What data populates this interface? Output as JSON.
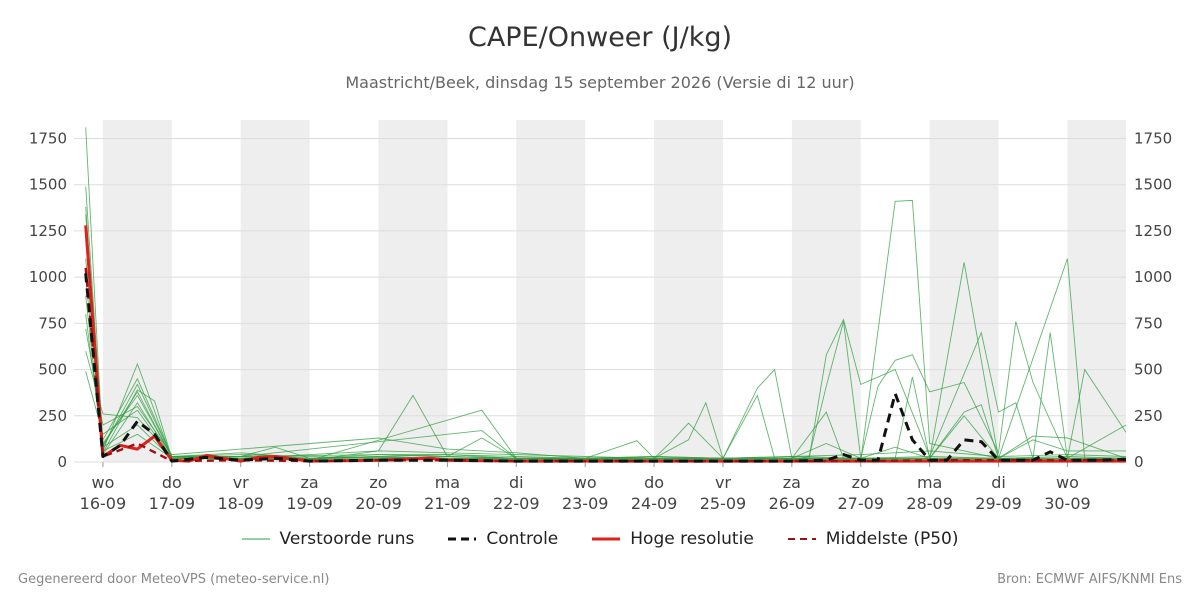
{
  "header": {
    "title": "CAPE/Onweer (J/kg)",
    "subtitle": "Maastricht/Beek, dinsdag 15 september 2026 (Versie di 12 uur)"
  },
  "footer": {
    "left": "Gegenereerd door MeteoVPS (meteo-service.nl)",
    "right": "Bron: ECMWF AIFS/KNMI Ens"
  },
  "legend": {
    "members": "Verstoorde runs",
    "control": "Controle",
    "hires": "Hoge resolutie",
    "median": "Middelste (P50)"
  },
  "colors": {
    "members": "#2e9e3e",
    "control": "#111111",
    "hires": "#e0201b",
    "median": "#a01010",
    "band": "#eeeeee",
    "grid": "#dddddd"
  },
  "chart_data": {
    "type": "line",
    "ylim": [
      0,
      1850
    ],
    "yticks": [
      0,
      250,
      500,
      750,
      1000,
      1250,
      1500,
      1750
    ],
    "x_unit": "days since 15-09-2026 00:00",
    "x_range": [
      0.58,
      15.85
    ],
    "x_ticks": [
      {
        "x": 1,
        "day": "wo",
        "date": "16-09"
      },
      {
        "x": 2,
        "day": "do",
        "date": "17-09"
      },
      {
        "x": 3,
        "day": "vr",
        "date": "18-09"
      },
      {
        "x": 4,
        "day": "za",
        "date": "19-09"
      },
      {
        "x": 5,
        "day": "zo",
        "date": "20-09"
      },
      {
        "x": 6,
        "day": "ma",
        "date": "21-09"
      },
      {
        "x": 7,
        "day": "di",
        "date": "22-09"
      },
      {
        "x": 8,
        "day": "wo",
        "date": "23-09"
      },
      {
        "x": 9,
        "day": "do",
        "date": "24-09"
      },
      {
        "x": 10,
        "day": "vr",
        "date": "25-09"
      },
      {
        "x": 11,
        "day": "za",
        "date": "26-09"
      },
      {
        "x": 12,
        "day": "zo",
        "date": "27-09"
      },
      {
        "x": 13,
        "day": "ma",
        "date": "28-09"
      },
      {
        "x": 14,
        "day": "di",
        "date": "29-09"
      },
      {
        "x": 15,
        "day": "wo",
        "date": "30-09"
      }
    ],
    "shaded_days": [
      [
        1,
        2
      ],
      [
        3,
        4
      ],
      [
        5,
        6
      ],
      [
        7,
        8
      ],
      [
        9,
        10
      ],
      [
        11,
        12
      ],
      [
        13,
        14
      ],
      [
        15,
        16
      ]
    ],
    "grid": true,
    "legend_position": "bottom",
    "series": [
      {
        "name": "Controle",
        "style": "dashed",
        "x": [
          0.75,
          1.0,
          1.25,
          1.5,
          1.75,
          2.0,
          2.5,
          3.0,
          3.5,
          4.0,
          5.0,
          6.0,
          7.0,
          8.0,
          9.0,
          10.0,
          11.0,
          11.5,
          11.75,
          12.0,
          12.25,
          12.5,
          12.75,
          13.0,
          13.25,
          13.5,
          13.75,
          14.0,
          14.25,
          14.5,
          14.75,
          15.0,
          15.25,
          15.5,
          15.85
        ],
        "y": [
          1020,
          30,
          90,
          220,
          150,
          5,
          25,
          10,
          20,
          5,
          10,
          10,
          5,
          5,
          5,
          5,
          5,
          10,
          40,
          10,
          10,
          370,
          120,
          10,
          10,
          120,
          110,
          10,
          10,
          10,
          55,
          10,
          10,
          10,
          15
        ]
      },
      {
        "name": "Hoge resolutie",
        "style": "solid",
        "x": [
          0.75,
          1.0,
          1.25,
          1.5,
          1.75,
          2.0,
          2.25,
          2.5,
          3.0,
          3.25,
          3.5,
          4.0,
          5.0,
          5.75,
          6.0,
          7.0,
          8.0,
          9.0,
          10.0,
          11.0,
          12.0,
          13.0,
          14.0,
          15.0,
          15.85
        ],
        "y": [
          1280,
          30,
          90,
          70,
          140,
          10,
          5,
          35,
          5,
          25,
          30,
          5,
          10,
          20,
          10,
          5,
          5,
          5,
          5,
          5,
          5,
          5,
          5,
          5,
          5
        ]
      },
      {
        "name": "Middelste (P50)",
        "style": "dashed",
        "x": [
          0.75,
          1.0,
          1.5,
          2.0,
          3.0,
          4.0,
          5.0,
          6.0,
          7.0,
          8.0,
          9.0,
          10.0,
          11.0,
          12.0,
          13.0,
          14.0,
          15.0,
          15.85
        ],
        "y": [
          1050,
          30,
          100,
          5,
          10,
          5,
          10,
          10,
          5,
          5,
          5,
          5,
          5,
          5,
          10,
          10,
          10,
          10
        ]
      }
    ],
    "member_peaks": {
      "note": "Verstoorde runs (ensemble) – key peak values per member",
      "members": [
        {
          "x": [
            0.75,
            1.0,
            1.5,
            2.0,
            3.0,
            5.0,
            6.0,
            7.0,
            8.0,
            9.0,
            10.0,
            11.0,
            12.0,
            13.0,
            14.0,
            15.0,
            15.85
          ],
          "y": [
            1810,
            60,
            530,
            20,
            30,
            40,
            30,
            20,
            10,
            10,
            10,
            10,
            10,
            10,
            10,
            10,
            10
          ]
        },
        {
          "x": [
            0.75,
            1.0,
            1.5,
            2.0,
            3.0,
            5.0,
            5.5,
            6.0,
            7.0,
            8.0,
            9.0,
            12.0,
            12.5,
            12.75,
            13.0,
            14.0,
            15.0,
            15.85
          ],
          "y": [
            1490,
            80,
            420,
            30,
            20,
            60,
            360,
            30,
            20,
            10,
            10,
            10,
            1410,
            1415,
            100,
            20,
            10,
            10
          ]
        },
        {
          "x": [
            0.75,
            1.0,
            1.5,
            1.75,
            2.0,
            4.0,
            6.5,
            7.0,
            9.0,
            11.0,
            11.25,
            11.5,
            11.75,
            12.0,
            13.0,
            13.5,
            14.0,
            15.0,
            15.25,
            15.85
          ],
          "y": [
            1380,
            50,
            390,
            330,
            20,
            10,
            280,
            20,
            10,
            10,
            30,
            410,
            760,
            20,
            20,
            1080,
            20,
            1100,
            20,
            10
          ]
        },
        {
          "x": [
            0.75,
            1.0,
            1.5,
            2.0,
            3.0,
            6.5,
            7.0,
            9.0,
            9.5,
            9.75,
            10.0,
            10.5,
            10.75,
            11.0,
            11.25,
            11.5,
            11.75,
            12.0,
            12.5,
            13.0,
            13.75,
            14.0,
            14.25,
            14.5,
            14.75,
            15.0,
            15.25,
            15.85
          ],
          "y": [
            1340,
            100,
            360,
            30,
            30,
            170,
            20,
            20,
            120,
            320,
            20,
            400,
            500,
            20,
            20,
            580,
            770,
            420,
            500,
            30,
            700,
            270,
            320,
            20,
            700,
            20,
            500,
            160
          ]
        },
        {
          "x": [
            0.75,
            1.0,
            1.5,
            2.0,
            5.0,
            6.0,
            7.0,
            8.0,
            8.75,
            9.0,
            9.25,
            9.5,
            10.0,
            10.5,
            10.75,
            11.0,
            12.0,
            12.25,
            12.5,
            12.75,
            13.0,
            13.5,
            14.0,
            14.25,
            14.5,
            15.0,
            15.85
          ],
          "y": [
            720,
            200,
            300,
            40,
            130,
            70,
            50,
            20,
            115,
            20,
            110,
            210,
            20,
            360,
            20,
            20,
            20,
            410,
            550,
            580,
            380,
            430,
            50,
            760,
            430,
            20,
            200
          ]
        },
        {
          "x": [
            0.75,
            1.0,
            1.5,
            2.0,
            3.0,
            5.0,
            6.0,
            6.5,
            7.0,
            9.0,
            10.0,
            11.0,
            11.5,
            11.75,
            12.0,
            12.5,
            12.75,
            13.0,
            13.5,
            13.75,
            14.0,
            14.5,
            15.0,
            15.85
          ],
          "y": [
            600,
            260,
            240,
            30,
            40,
            20,
            30,
            130,
            20,
            20,
            20,
            20,
            270,
            20,
            20,
            20,
            460,
            20,
            270,
            310,
            20,
            140,
            130,
            20
          ]
        },
        {
          "x": [
            0.75,
            1.0,
            1.5,
            2.0,
            3.0,
            4.0,
            5.0,
            6.0,
            7.0,
            8.0,
            9.0,
            10.0,
            11.0,
            11.5,
            12.0,
            12.5,
            13.0,
            13.5,
            14.0,
            14.5,
            15.0,
            15.85
          ],
          "y": [
            490,
            150,
            280,
            20,
            20,
            10,
            60,
            50,
            40,
            30,
            20,
            20,
            20,
            100,
            20,
            80,
            20,
            250,
            20,
            120,
            60,
            60
          ]
        },
        {
          "x": [
            0.75,
            1.0,
            1.5,
            2.0,
            3.0,
            4.0,
            5.0,
            6.0,
            7.0,
            8.0,
            9.0,
            10.0,
            11.0,
            12.0,
            13.0,
            14.0,
            15.0,
            15.85
          ],
          "y": [
            1200,
            120,
            450,
            30,
            50,
            20,
            40,
            40,
            30,
            20,
            30,
            20,
            30,
            40,
            60,
            30,
            40,
            30
          ]
        },
        {
          "x": [
            0.75,
            1.0,
            1.5,
            2.0,
            3.0,
            3.5,
            4.0,
            5.0,
            6.0,
            7.0,
            8.0,
            9.0,
            10.0,
            11.0,
            12.0,
            13.0,
            14.0,
            15.0,
            15.85
          ],
          "y": [
            1000,
            80,
            200,
            20,
            30,
            80,
            20,
            30,
            40,
            20,
            20,
            30,
            20,
            30,
            20,
            30,
            20,
            30,
            20
          ]
        },
        {
          "x": [
            0.75,
            1.0,
            1.5,
            2.0,
            3.0,
            4.0,
            5.0,
            6.0,
            7.0,
            8.0,
            9.0,
            10.0,
            11.0,
            12.0,
            13.0,
            14.0,
            15.0,
            15.85
          ],
          "y": [
            900,
            40,
            320,
            20,
            20,
            20,
            30,
            20,
            20,
            20,
            20,
            20,
            20,
            20,
            20,
            20,
            20,
            20
          ]
        },
        {
          "x": [
            0.75,
            1.0,
            1.5,
            2.0,
            3.0,
            4.0,
            5.0,
            6.0,
            7.0,
            8.0,
            9.0,
            10.0,
            11.0,
            12.0,
            13.0,
            14.0,
            15.0,
            15.85
          ],
          "y": [
            800,
            60,
            150,
            20,
            20,
            20,
            20,
            20,
            20,
            20,
            20,
            20,
            20,
            20,
            20,
            20,
            20,
            20
          ]
        },
        {
          "x": [
            0.75,
            1.0,
            1.5,
            2.0,
            3.0,
            4.0,
            5.0,
            6.0,
            7.0,
            8.0,
            9.0,
            10.0,
            11.0,
            12.0,
            13.0,
            14.0,
            15.0,
            15.85
          ],
          "y": [
            1100,
            90,
            380,
            25,
            30,
            15,
            25,
            20,
            15,
            15,
            15,
            15,
            15,
            15,
            15,
            15,
            15,
            15
          ]
        }
      ]
    }
  }
}
